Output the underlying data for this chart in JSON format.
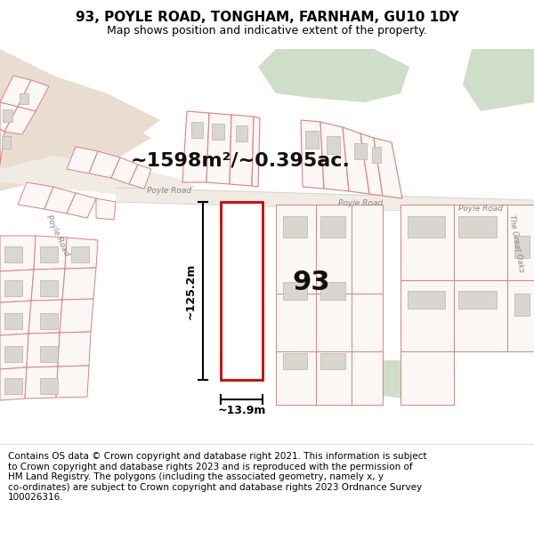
{
  "title": "93, POYLE ROAD, TONGHAM, FARNHAM, GU10 1DY",
  "subtitle": "Map shows position and indicative extent of the property.",
  "footer": "Contains OS data © Crown copyright and database right 2021. This information is subject\nto Crown copyright and database rights 2023 and is reproduced with the permission of\nHM Land Registry. The polygons (including the associated geometry, namely x, y\nco-ordinates) are subject to Crown copyright and database rights 2023 Ordnance Survey\n100026316.",
  "map_bg": "#f7f2ed",
  "bg_tan": "#e8ddd0",
  "polygon_line_color": "#e08080",
  "polygon_fill": "#faf7f5",
  "highlight_color": "#cc0000",
  "green_area_color": "#cfdec8",
  "road_fill": "#f7f2ed",
  "building_fill": "#d9d5cf",
  "building_edge": "#b8b3ad",
  "dim_line_color": "#000000",
  "label_93": "93",
  "area_label": "~1598m²/~0.395ac.",
  "width_label": "~13.9m",
  "height_label": "~125.2m",
  "title_fontsize": 11,
  "subtitle_fontsize": 9,
  "footer_fontsize": 7.5,
  "road_label_color": "#888888"
}
